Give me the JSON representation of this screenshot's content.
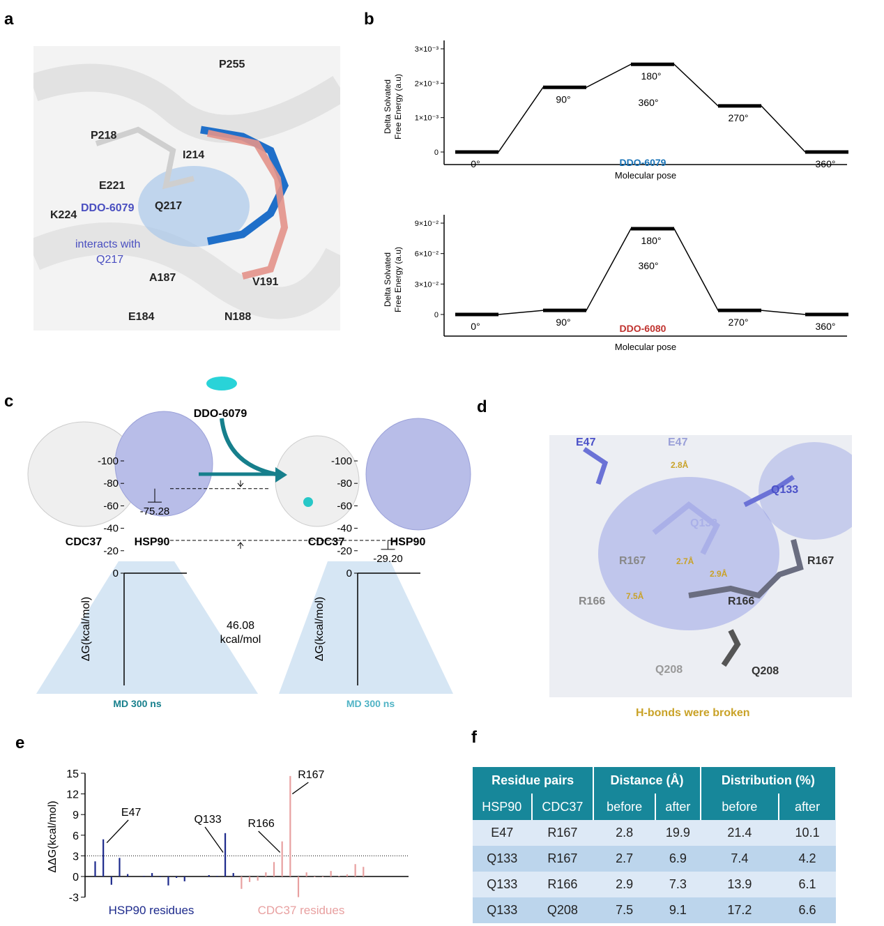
{
  "panel_labels": [
    "a",
    "b",
    "c",
    "d",
    "e",
    "f"
  ],
  "panel_a": {
    "residues": [
      "P255",
      "P218",
      "I214",
      "E221",
      "Q217",
      "K224",
      "A187",
      "V191",
      "E184",
      "N188"
    ],
    "note": [
      "DDO-6079",
      "interacts with",
      "Q217"
    ]
  },
  "chart_data": [
    {
      "panel": "b-top",
      "type": "line",
      "ylabel": "Delta Solvated Free Energy (a.u)",
      "xlabel": "Molecular pose",
      "compound": "DDO-6079",
      "compound_color": "#1a74b8",
      "categories": [
        "0°",
        "90°",
        "180°",
        "270°",
        "360°"
      ],
      "values": [
        0,
        0.00188,
        0.00255,
        0.00134,
        0
      ],
      "yticks": [
        "0",
        "1×10⁻³",
        "2×10⁻³",
        "3×10⁻³"
      ],
      "ytick_values": [
        0,
        0.001,
        0.002,
        0.003
      ],
      "ylim": [
        -0.0005,
        0.003
      ],
      "annotation": "360°"
    },
    {
      "panel": "b-bottom",
      "type": "line",
      "ylabel": "Delta Solvated Free Energy (a.u)",
      "xlabel": "Molecular pose",
      "compound": "DDO-6080",
      "compound_color": "#c0322e",
      "categories": [
        "0°",
        "90°",
        "180°",
        "270°",
        "360°"
      ],
      "values": [
        0,
        0.004,
        0.0845,
        0.004,
        0
      ],
      "yticks": [
        "0",
        "3×10⁻²",
        "6×10⁻²",
        "9×10⁻²"
      ],
      "ytick_values": [
        0,
        0.03,
        0.06,
        0.09
      ],
      "ylim": [
        -0.02,
        0.1
      ],
      "annotation": "360°"
    },
    {
      "panel": "c",
      "type": "bar",
      "ylabel": "ΔG(kcal/mol)",
      "ylim": [
        -100,
        0
      ],
      "yticks": [
        "0",
        "-20",
        "-40",
        "-60",
        "-80",
        "-100"
      ],
      "ytick_values": [
        0,
        -20,
        -40,
        -60,
        -80,
        -100
      ],
      "series": [
        {
          "categories": [
            "CDC37",
            "HSP90"
          ],
          "value": -75.28,
          "label": "-75.28",
          "error": 12,
          "color": "#167f8c",
          "md": "MD 300 ns"
        },
        {
          "value": -29.2,
          "label": "-29.20",
          "error": 8,
          "color": "#4fb3c5",
          "md": "MD 300 ns"
        }
      ],
      "difference": [
        "46.08",
        "kcal/mol"
      ],
      "ligand": "DDO-6079",
      "proteins": [
        "CDC37",
        "HSP90"
      ]
    },
    {
      "panel": "e",
      "type": "bar",
      "ylabel": "ΔΔG(kcal/mol)",
      "ylim": [
        -3,
        15
      ],
      "yticks": [
        "15",
        "12",
        "9",
        "6",
        "3",
        "0",
        "-3"
      ],
      "ytick_values": [
        15,
        12,
        9,
        6,
        3,
        0,
        -3
      ],
      "threshold": 3,
      "series": [
        {
          "name": "HSP90 residues",
          "color": "#1d2a8c",
          "values": [
            2.2,
            5.4,
            -1.2,
            2.7,
            0.35,
            0,
            0.1,
            0.5,
            -0.1,
            -1.3,
            -0.2,
            -0.7,
            0,
            0,
            0.2,
            0.1,
            6.3,
            0.5
          ]
        },
        {
          "name": "CDC37 residues",
          "color": "#e8a0a0",
          "values": [
            -1.8,
            -0.8,
            -0.6,
            0.6,
            2.1,
            5.1,
            14.6,
            -3.0,
            0.6,
            -0.1,
            -0.1,
            0.8,
            0.1,
            0.3,
            1.8,
            1.4
          ]
        }
      ],
      "annotations": [
        {
          "text": "E47",
          "index": 1
        },
        {
          "text": "Q133",
          "index": 16
        },
        {
          "text": "R166",
          "index": 23
        },
        {
          "text": "R167",
          "index": 24
        }
      ]
    }
  ],
  "panel_d": {
    "labels": [
      "E47",
      "E47",
      "2.8Å",
      "Q133",
      "Q133",
      "R167",
      "2.7Å",
      "2.9Å",
      "R167",
      "7.5Å",
      "R166",
      "R166",
      "Q208",
      "Q208"
    ],
    "caption": "H-bonds were broken"
  },
  "table_f": {
    "group_headers": [
      "Residue pairs",
      "Distance (Å)",
      "Distribution (%)"
    ],
    "sub_headers": [
      "HSP90",
      "CDC37",
      "before",
      "after",
      "before",
      "after"
    ],
    "rows": [
      [
        "E47",
        "R167",
        "2.8",
        "19.9",
        "21.4",
        "10.1"
      ],
      [
        "Q133",
        "R167",
        "2.7",
        "6.9",
        "7.4",
        "4.2"
      ],
      [
        "Q133",
        "R166",
        "2.9",
        "7.3",
        "13.9",
        "6.1"
      ],
      [
        "Q133",
        "Q208",
        "7.5",
        "9.1",
        "17.2",
        "6.6"
      ]
    ]
  }
}
